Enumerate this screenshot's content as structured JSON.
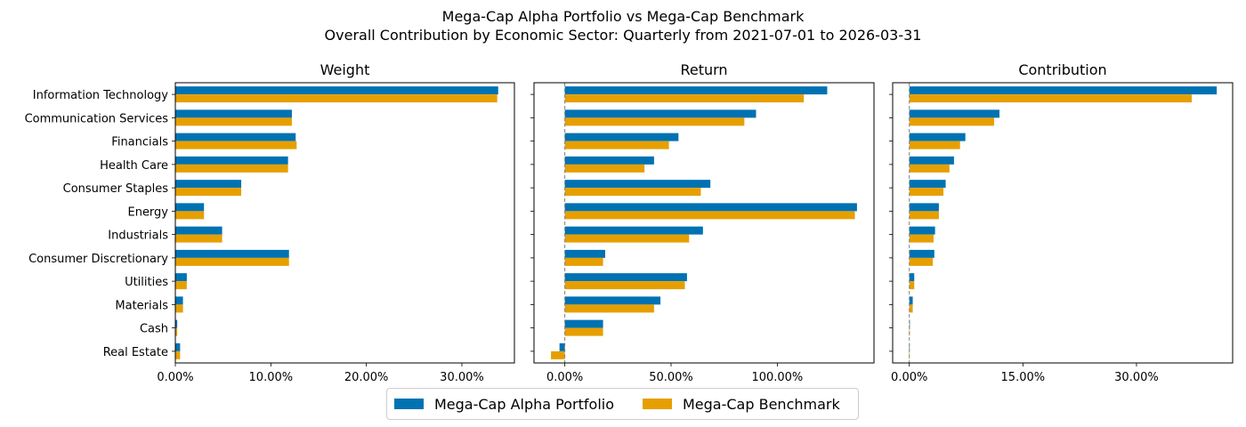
{
  "title_line1": "Mega-Cap Alpha Portfolio vs Mega-Cap Benchmark",
  "title_line2": "Overall Contribution by Economic Sector: Quarterly from 2021-07-01 to 2026-03-31",
  "colors": {
    "portfolio": "#0072B2",
    "benchmark": "#E69F00",
    "zero_line": "#808080"
  },
  "legend": {
    "portfolio": "Mega-Cap Alpha Portfolio",
    "benchmark": "Mega-Cap Benchmark",
    "placement": "bottom-center"
  },
  "chart_data": [
    {
      "type": "bar",
      "orientation": "horizontal",
      "title": "Weight",
      "categories": [
        "Information Technology",
        "Communication Services",
        "Financials",
        "Health Care",
        "Consumer Staples",
        "Energy",
        "Industrials",
        "Consumer Discretionary",
        "Utilities",
        "Materials",
        "Cash",
        "Real Estate"
      ],
      "series": [
        {
          "name": "Mega-Cap Alpha Portfolio",
          "values": [
            33.8,
            12.2,
            12.6,
            11.8,
            6.9,
            3.0,
            4.9,
            11.9,
            1.2,
            0.8,
            0.2,
            0.5
          ]
        },
        {
          "name": "Mega-Cap Benchmark",
          "values": [
            33.7,
            12.2,
            12.7,
            11.8,
            6.9,
            3.0,
            4.9,
            11.9,
            1.2,
            0.8,
            0.2,
            0.5
          ]
        }
      ],
      "xlim": [
        0,
        35.5
      ],
      "xticks": [
        0,
        10,
        20,
        30
      ],
      "xtick_labels": [
        "0.00%",
        "10.00%",
        "20.00%",
        "30.00%"
      ],
      "show_zero_line": false,
      "show_ytick_labels": true
    },
    {
      "type": "bar",
      "orientation": "horizontal",
      "title": "Return",
      "categories": [
        "Information Technology",
        "Communication Services",
        "Financials",
        "Health Care",
        "Consumer Staples",
        "Energy",
        "Industrials",
        "Consumer Discretionary",
        "Utilities",
        "Materials",
        "Cash",
        "Real Estate"
      ],
      "series": [
        {
          "name": "Mega-Cap Alpha Portfolio",
          "values": [
            123.5,
            90.0,
            53.5,
            42.0,
            68.5,
            137.5,
            65.0,
            19.0,
            57.5,
            45.0,
            18.0,
            -2.5
          ]
        },
        {
          "name": "Mega-Cap Benchmark",
          "values": [
            112.5,
            84.5,
            49.0,
            37.5,
            64.0,
            136.5,
            58.5,
            18.0,
            56.5,
            42.0,
            18.0,
            -6.5
          ]
        }
      ],
      "xlim": [
        -14.5,
        145.5
      ],
      "xticks": [
        0,
        50,
        100
      ],
      "xtick_labels": [
        "0.00%",
        "50.00%",
        "100.00%"
      ],
      "show_zero_line": true,
      "show_ytick_labels": false
    },
    {
      "type": "bar",
      "orientation": "horizontal",
      "title": "Contribution",
      "categories": [
        "Information Technology",
        "Communication Services",
        "Financials",
        "Health Care",
        "Consumer Staples",
        "Energy",
        "Industrials",
        "Consumer Discretionary",
        "Utilities",
        "Materials",
        "Cash",
        "Real Estate"
      ],
      "series": [
        {
          "name": "Mega-Cap Alpha Portfolio",
          "values": [
            40.6,
            11.9,
            7.4,
            5.9,
            4.8,
            3.9,
            3.4,
            3.3,
            0.65,
            0.45,
            0.03,
            -0.02
          ]
        },
        {
          "name": "Mega-Cap Benchmark",
          "values": [
            37.3,
            11.2,
            6.7,
            5.3,
            4.5,
            3.9,
            3.2,
            3.1,
            0.65,
            0.45,
            0.03,
            -0.03
          ]
        }
      ],
      "xlim": [
        -2.2,
        42.7
      ],
      "xticks": [
        0,
        15,
        30
      ],
      "xtick_labels": [
        "0.00%",
        "15.00%",
        "30.00%"
      ],
      "show_zero_line": true,
      "show_ytick_labels": false
    }
  ]
}
